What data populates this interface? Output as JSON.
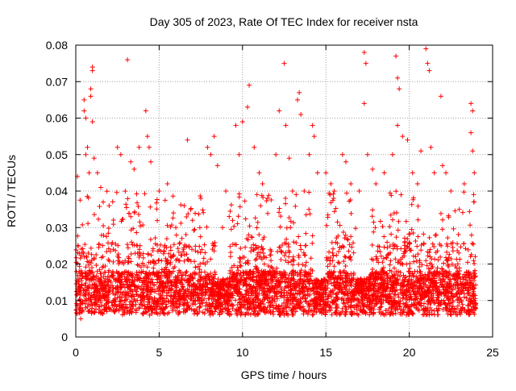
{
  "chart_data": {
    "type": "scatter",
    "title": "Day 305 of 2023, Rate Of TEC Index for receiver nsta",
    "xlabel": "GPS time / hours",
    "ylabel": "ROTI / TECUs",
    "xlim": [
      0,
      25
    ],
    "ylim": [
      0,
      0.08
    ],
    "xticks": [
      0,
      5,
      10,
      15,
      20,
      25
    ],
    "yticks": [
      0,
      0.01,
      0.02,
      0.03,
      0.04,
      0.05,
      0.06,
      0.07,
      0.08
    ],
    "xtick_labels": [
      "0",
      "5",
      "10",
      "15",
      "20",
      "25"
    ],
    "ytick_labels": [
      "0",
      "0.01",
      "0.02",
      "0.03",
      "0.04",
      "0.05",
      "0.06",
      "0.07",
      "0.08"
    ],
    "grid": true,
    "marker": "plus",
    "color": "#ff0000",
    "x_range_of_data": [
      0,
      24
    ],
    "series": [
      {
        "points": [
          [
            0.1,
            0.044
          ],
          [
            0.3,
            0.005
          ],
          [
            0.5,
            0.065
          ],
          [
            0.5,
            0.062
          ],
          [
            0.6,
            0.06
          ],
          [
            0.6,
            0.05
          ],
          [
            0.7,
            0.052
          ],
          [
            0.8,
            0.045
          ],
          [
            1.0,
            0.074
          ],
          [
            1.0,
            0.073
          ],
          [
            0.9,
            0.068
          ],
          [
            0.9,
            0.066
          ],
          [
            1.0,
            0.059
          ],
          [
            1.1,
            0.049
          ],
          [
            1.3,
            0.045
          ],
          [
            1.5,
            0.041
          ],
          [
            2.0,
            0.036
          ],
          [
            2.5,
            0.052
          ],
          [
            2.7,
            0.05
          ],
          [
            3.1,
            0.076
          ],
          [
            3.3,
            0.048
          ],
          [
            3.5,
            0.046
          ],
          [
            3.8,
            0.052
          ],
          [
            4.2,
            0.062
          ],
          [
            4.3,
            0.055
          ],
          [
            4.4,
            0.052
          ],
          [
            4.5,
            0.048
          ],
          [
            5.0,
            0.04
          ],
          [
            5.5,
            0.042
          ],
          [
            6.0,
            0.03
          ],
          [
            6.5,
            0.036
          ],
          [
            6.7,
            0.054
          ],
          [
            7.0,
            0.032
          ],
          [
            7.5,
            0.038
          ],
          [
            7.9,
            0.052
          ],
          [
            8.1,
            0.05
          ],
          [
            8.3,
            0.055
          ],
          [
            8.5,
            0.047
          ],
          [
            8.8,
            0.03
          ],
          [
            9.0,
            0.04
          ],
          [
            9.2,
            0.033
          ],
          [
            9.6,
            0.058
          ],
          [
            9.8,
            0.05
          ],
          [
            10.0,
            0.059
          ],
          [
            10.3,
            0.063
          ],
          [
            10.4,
            0.069
          ],
          [
            10.7,
            0.052
          ],
          [
            11.0,
            0.045
          ],
          [
            11.2,
            0.042
          ],
          [
            11.5,
            0.038
          ],
          [
            12.0,
            0.05
          ],
          [
            12.2,
            0.062
          ],
          [
            12.5,
            0.075
          ],
          [
            12.6,
            0.058
          ],
          [
            12.8,
            0.049
          ],
          [
            13.0,
            0.04
          ],
          [
            13.3,
            0.065
          ],
          [
            13.4,
            0.067
          ],
          [
            13.5,
            0.061
          ],
          [
            13.7,
            0.04
          ],
          [
            14.0,
            0.05
          ],
          [
            14.2,
            0.058
          ],
          [
            14.3,
            0.055
          ],
          [
            14.5,
            0.045
          ],
          [
            15.0,
            0.045
          ],
          [
            15.3,
            0.042
          ],
          [
            15.5,
            0.04
          ],
          [
            16.0,
            0.05
          ],
          [
            16.2,
            0.048
          ],
          [
            16.5,
            0.042
          ],
          [
            17.0,
            0.04
          ],
          [
            17.3,
            0.078
          ],
          [
            17.4,
            0.075
          ],
          [
            17.3,
            0.064
          ],
          [
            17.5,
            0.05
          ],
          [
            17.8,
            0.046
          ],
          [
            18.0,
            0.042
          ],
          [
            18.5,
            0.045
          ],
          [
            19.0,
            0.05
          ],
          [
            19.2,
            0.077
          ],
          [
            19.3,
            0.071
          ],
          [
            19.4,
            0.068
          ],
          [
            19.3,
            0.058
          ],
          [
            19.6,
            0.055
          ],
          [
            19.9,
            0.054
          ],
          [
            20.2,
            0.045
          ],
          [
            20.5,
            0.042
          ],
          [
            20.7,
            0.051
          ],
          [
            21.0,
            0.079
          ],
          [
            21.1,
            0.075
          ],
          [
            21.2,
            0.073
          ],
          [
            21.3,
            0.052
          ],
          [
            21.5,
            0.045
          ],
          [
            21.9,
            0.066
          ],
          [
            22.0,
            0.047
          ],
          [
            22.2,
            0.045
          ],
          [
            22.5,
            0.04
          ],
          [
            23.0,
            0.035
          ],
          [
            23.3,
            0.042
          ],
          [
            23.7,
            0.064
          ],
          [
            23.8,
            0.062
          ],
          [
            23.7,
            0.056
          ],
          [
            23.8,
            0.051
          ],
          [
            23.9,
            0.045
          ]
        ]
      }
    ]
  }
}
